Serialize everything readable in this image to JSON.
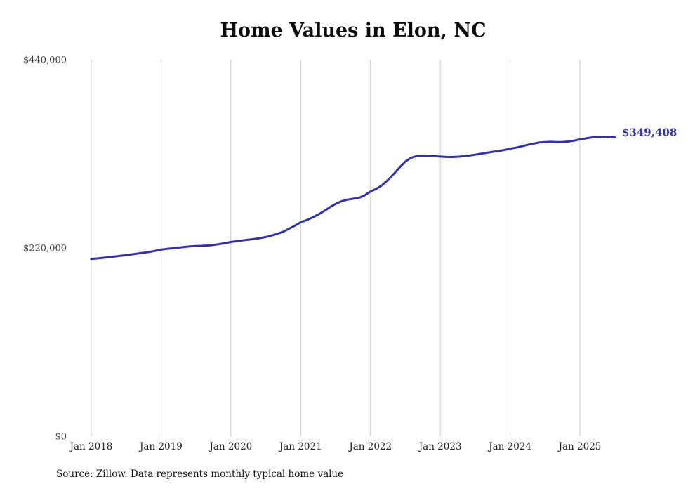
{
  "chart_data": {
    "type": "line",
    "title": "Home Values in Elon, NC",
    "xlabel": "",
    "ylabel": "",
    "ylim": [
      0,
      440000
    ],
    "grid": "vertical-only",
    "legend": "none",
    "colors": {
      "line": "#3530a3",
      "gridline": "#cccccc"
    },
    "y_ticks": [
      {
        "label": "$0",
        "value": 0
      },
      {
        "label": "$220,000",
        "value": 220000
      },
      {
        "label": "$440,000",
        "value": 440000
      }
    ],
    "x_tick_labels": [
      "Jan 2018",
      "Jan 2019",
      "Jan 2020",
      "Jan 2021",
      "Jan 2022",
      "Jan 2023",
      "Jan 2024",
      "Jan 2025"
    ],
    "end_label": "$349,408",
    "source": "Source: Zillow. Data represents monthly typical home value",
    "series": [
      {
        "name": "Monthly typical home value",
        "start_month": "2018-01",
        "end_month": "2025-07",
        "frequency": "monthly",
        "values": [
          207000,
          207700,
          208400,
          209200,
          210000,
          210800,
          211600,
          212500,
          213400,
          214300,
          215300,
          216600,
          218000,
          218900,
          219600,
          220400,
          221200,
          221800,
          222200,
          222500,
          222900,
          223500,
          224500,
          225700,
          227000,
          228000,
          228900,
          229700,
          230500,
          231500,
          232800,
          234500,
          236500,
          239000,
          242500,
          246000,
          250000,
          252500,
          255500,
          259000,
          263000,
          267500,
          271500,
          274500,
          276500,
          277500,
          278500,
          281500,
          286000,
          289000,
          293500,
          299500,
          306500,
          314000,
          321000,
          325500,
          327500,
          328000,
          327700,
          327200,
          326800,
          326400,
          326300,
          326600,
          327200,
          328000,
          329000,
          330200,
          331300,
          332300,
          333300,
          334500,
          336000,
          337200,
          338800,
          340500,
          342000,
          343200,
          343800,
          344000,
          343800,
          343900,
          344400,
          345400,
          346800,
          348100,
          349100,
          349800,
          350100,
          349900,
          349408
        ]
      }
    ]
  }
}
